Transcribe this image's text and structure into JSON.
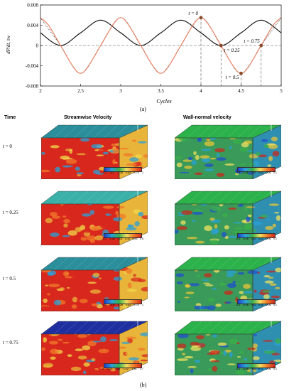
{
  "chart_data": {
    "type": "line",
    "x_label": "Cycles",
    "y_label": "dP/dt, τw",
    "xlim": [
      2,
      5
    ],
    "ylim": [
      -0.008,
      0.008
    ],
    "x_ticks": [
      "2",
      "2.5",
      "3",
      "3.5",
      "4",
      "4.5",
      "5"
    ],
    "y_ticks": [
      "0.008",
      "0.004",
      "0",
      "-0.004",
      "-0.008"
    ],
    "series": [
      {
        "style": "solid",
        "color": "#1a1a1a",
        "x": [
          2.0,
          2.25,
          2.5,
          2.75,
          3.0,
          3.25,
          3.5,
          3.75,
          4.0,
          4.25,
          4.5,
          4.75,
          5.0
        ],
        "y": [
          0.0025,
          0.0,
          0.0025,
          0.005,
          0.0025,
          0.0,
          0.0025,
          0.005,
          0.0025,
          0.0,
          0.0025,
          0.005,
          0.0025
        ]
      },
      {
        "style": "dotted",
        "color": "#333333",
        "x": [
          2.0,
          2.25,
          2.5,
          2.75,
          3.0,
          3.25,
          3.5,
          3.75,
          4.0,
          4.25,
          4.5,
          4.75,
          5.0
        ],
        "y": [
          0.0055,
          0.0,
          -0.0055,
          0.0,
          0.0055,
          0.0,
          -0.0055,
          0.0,
          0.0055,
          0.0,
          -0.0055,
          0.0,
          0.0055
        ]
      },
      {
        "style": "solid",
        "color": "#e8876a",
        "x": [
          2.0,
          2.1,
          2.25,
          2.4,
          2.5,
          2.6,
          2.75,
          2.9,
          3.0,
          3.1,
          3.25,
          3.4,
          3.5,
          3.6,
          3.75,
          3.9,
          4.0,
          4.1,
          4.25,
          4.4,
          4.5,
          4.6,
          4.75,
          4.9,
          5.0
        ],
        "y": [
          0.0055,
          0.004,
          0.0,
          -0.004,
          -0.0055,
          -0.004,
          0.0,
          0.004,
          0.0055,
          0.004,
          0.0,
          -0.004,
          -0.0055,
          -0.004,
          0.0,
          0.004,
          0.0055,
          0.004,
          0.0,
          -0.004,
          -0.0055,
          -0.004,
          0.0,
          0.004,
          0.0055
        ]
      }
    ],
    "markers": [
      {
        "label": "t = 0",
        "x": 4.0,
        "y": 0.0055
      },
      {
        "label": "t = 0.25",
        "x": 4.25,
        "y": 0.0
      },
      {
        "label": "t = 0.5",
        "x": 4.5,
        "y": -0.0055
      },
      {
        "label": "t = 0.75",
        "x": 4.75,
        "y": 0.0
      }
    ],
    "marker_color": "#8b4a2a",
    "panel_label": "(a)"
  },
  "figure_b": {
    "panel_label": "(b)",
    "time_header": "Time",
    "col_streamwise": "Streamwise Velocity",
    "col_wallnormal": "Wall-normal velocity",
    "rows": [
      {
        "time": "t = 0",
        "stream_ticks": [
          "-0.2",
          "0.04",
          "0.28",
          "0.52",
          "0.76",
          "1"
        ],
        "wall_ticks": [
          "-0.1",
          "-0.06",
          "0.02",
          "0.02",
          "0.06",
          "0.1"
        ]
      },
      {
        "time": "t = 0.25",
        "stream_ticks": [
          "-0.2",
          "-0.36",
          "0.04",
          "0.16",
          "0.48",
          "0.8"
        ],
        "wall_ticks": [
          "-0.1",
          "-0.06",
          "0.02",
          "0.02",
          "0.06",
          "0.1"
        ]
      },
      {
        "time": "t = 0.5",
        "stream_ticks": [
          "-0.2",
          "0.04",
          "0.28",
          "0.52",
          "0.76",
          "1"
        ],
        "wall_ticks": [
          "-0.1",
          "-0.06",
          "0.02",
          "0.02",
          "0.06",
          "0.1"
        ]
      },
      {
        "time": "t = 0.75",
        "stream_ticks": [
          "0",
          "0.34",
          "0.68",
          "1.02",
          "1.36",
          "1.7"
        ],
        "wall_ticks": [
          "-0.1",
          "-0.06",
          "0.02",
          "0.02",
          "0.06",
          "0.1"
        ]
      }
    ],
    "top_face_colors": [
      "#2a8f9a",
      "#3ab0a8",
      "#2a8f9a",
      "#1f2fa0"
    ],
    "wall_top_color": "#2bb24a",
    "hot_color": "#d8281e",
    "mid_color": "#e8b53a",
    "cold_color": "#2aa0d8"
  }
}
